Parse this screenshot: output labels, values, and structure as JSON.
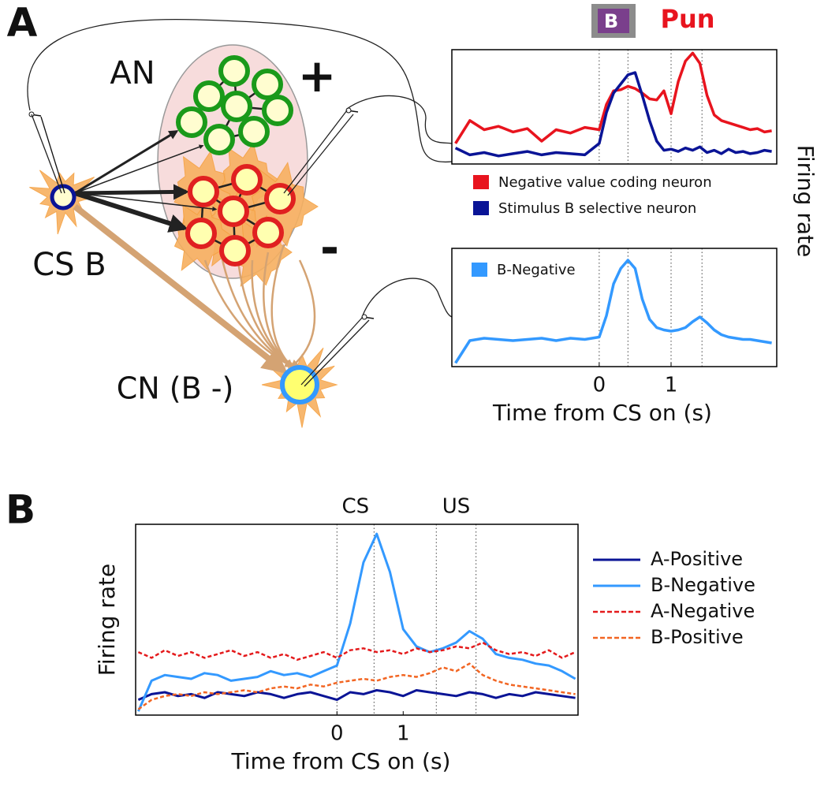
{
  "panel_labels": [
    "A",
    "B"
  ],
  "diagram": {
    "an": "AN",
    "plus": "+",
    "minus": "-",
    "cs": "CS B",
    "cn": "CN (B -)"
  },
  "chart_data": [
    {
      "type": "line",
      "title": "Pun",
      "icon_text": "B",
      "ylabel": "Firing rate",
      "legend": "below",
      "x": [
        -2,
        -1.8,
        -1.6,
        -1.4,
        -1.2,
        -1,
        -0.8,
        -0.6,
        -0.4,
        -0.2,
        0,
        0.1,
        0.2,
        0.3,
        0.4,
        0.5,
        0.6,
        0.7,
        0.8,
        0.9,
        1,
        1.1,
        1.2,
        1.3,
        1.4,
        1.5,
        1.6,
        1.7,
        1.8,
        1.9,
        2,
        2.1,
        2.2,
        2.3,
        2.4
      ],
      "xlim": [
        -2.05,
        2.47
      ],
      "ylim": [
        0,
        100
      ],
      "vlines": [
        0,
        0.4,
        1,
        1.43
      ],
      "series": [
        {
          "name": "Negative value coding neuron",
          "color": "#e8141e",
          "values": [
            18,
            38,
            30,
            33,
            28,
            31,
            20,
            30,
            27,
            32,
            30,
            52,
            64,
            65,
            68,
            66,
            62,
            57,
            56,
            64,
            44,
            72,
            90,
            97,
            88,
            60,
            43,
            38,
            36,
            34,
            32,
            30,
            31,
            28,
            29
          ]
        },
        {
          "name": "Stimulus B selective neuron",
          "color": "#0a1496",
          "values": [
            14,
            8,
            10,
            7,
            9,
            11,
            8,
            10,
            9,
            8,
            18,
            45,
            62,
            70,
            78,
            80,
            60,
            38,
            20,
            12,
            13,
            11,
            14,
            12,
            15,
            10,
            12,
            9,
            13,
            10,
            11,
            9,
            10,
            12,
            11
          ]
        }
      ]
    },
    {
      "type": "line",
      "xlabel": "Time from CS on (s)",
      "legend": "upper left",
      "x": [
        -2,
        -1.8,
        -1.6,
        -1.4,
        -1.2,
        -1,
        -0.8,
        -0.6,
        -0.4,
        -0.2,
        0,
        0.1,
        0.2,
        0.3,
        0.4,
        0.5,
        0.6,
        0.7,
        0.8,
        0.9,
        1,
        1.1,
        1.2,
        1.3,
        1.4,
        1.5,
        1.6,
        1.7,
        1.8,
        1.9,
        2,
        2.1,
        2.2,
        2.3,
        2.4
      ],
      "xlim": [
        -2.05,
        2.47
      ],
      "ylim": [
        0,
        100
      ],
      "xticks": [
        0,
        1
      ],
      "vlines": [
        0,
        0.4,
        1,
        1.43
      ],
      "series": [
        {
          "name": "B-Negative",
          "color": "#3399ff",
          "values": [
            3,
            22,
            24,
            23,
            22,
            23,
            24,
            22,
            24,
            23,
            25,
            43,
            70,
            83,
            90,
            83,
            57,
            40,
            33,
            31,
            30,
            31,
            33,
            38,
            42,
            37,
            31,
            27,
            25,
            24,
            23,
            23,
            22,
            21,
            20
          ]
        }
      ]
    },
    {
      "type": "line",
      "ylabel": "Firing rate",
      "xlabel": "Time from CS on (s)",
      "legend": "right",
      "annotations": [
        "CS",
        "US"
      ],
      "x": [
        -3,
        -2.8,
        -2.6,
        -2.4,
        -2.2,
        -2,
        -1.8,
        -1.6,
        -1.4,
        -1.2,
        -1,
        -0.8,
        -0.6,
        -0.4,
        -0.2,
        0,
        0.2,
        0.4,
        0.6,
        0.8,
        1,
        1.2,
        1.4,
        1.6,
        1.8,
        2,
        2.2,
        2.4,
        2.6,
        2.8,
        3,
        3.2,
        3.4,
        3.6
      ],
      "xlim": [
        -3.04,
        3.64
      ],
      "ylim": [
        0,
        100
      ],
      "xticks": [
        0,
        1
      ],
      "vlines": [
        0,
        0.56,
        1.5,
        2.1
      ],
      "series": [
        {
          "name": "A-Positive",
          "color": "#0a1496",
          "dash": false,
          "values": [
            8,
            11,
            12,
            10,
            11,
            9,
            12,
            11,
            10,
            12,
            11,
            9,
            11,
            12,
            10,
            8,
            12,
            11,
            13,
            12,
            10,
            13,
            12,
            11,
            10,
            12,
            11,
            9,
            11,
            10,
            12,
            11,
            10,
            9
          ]
        },
        {
          "name": "B-Negative",
          "color": "#3399ff",
          "dash": false,
          "values": [
            2,
            18,
            21,
            20,
            19,
            22,
            21,
            18,
            19,
            20,
            23,
            21,
            22,
            20,
            23,
            26,
            48,
            80,
            95,
            75,
            45,
            36,
            33,
            35,
            38,
            44,
            40,
            32,
            30,
            29,
            27,
            26,
            23,
            19
          ]
        },
        {
          "name": "A-Negative",
          "color": "#e41a1c",
          "dash": true,
          "values": [
            33,
            30,
            34,
            31,
            33,
            30,
            32,
            34,
            31,
            33,
            30,
            32,
            29,
            31,
            33,
            30,
            34,
            35,
            33,
            34,
            32,
            35,
            33,
            34,
            36,
            35,
            38,
            34,
            32,
            33,
            31,
            34,
            30,
            33
          ]
        },
        {
          "name": "B-Positive",
          "color": "#f26522",
          "dash": true,
          "values": [
            3,
            8,
            10,
            11,
            10,
            12,
            11,
            12,
            13,
            12,
            14,
            15,
            14,
            16,
            15,
            17,
            18,
            19,
            18,
            20,
            21,
            20,
            22,
            25,
            23,
            27,
            21,
            18,
            16,
            15,
            14,
            13,
            12,
            11
          ]
        }
      ]
    }
  ]
}
